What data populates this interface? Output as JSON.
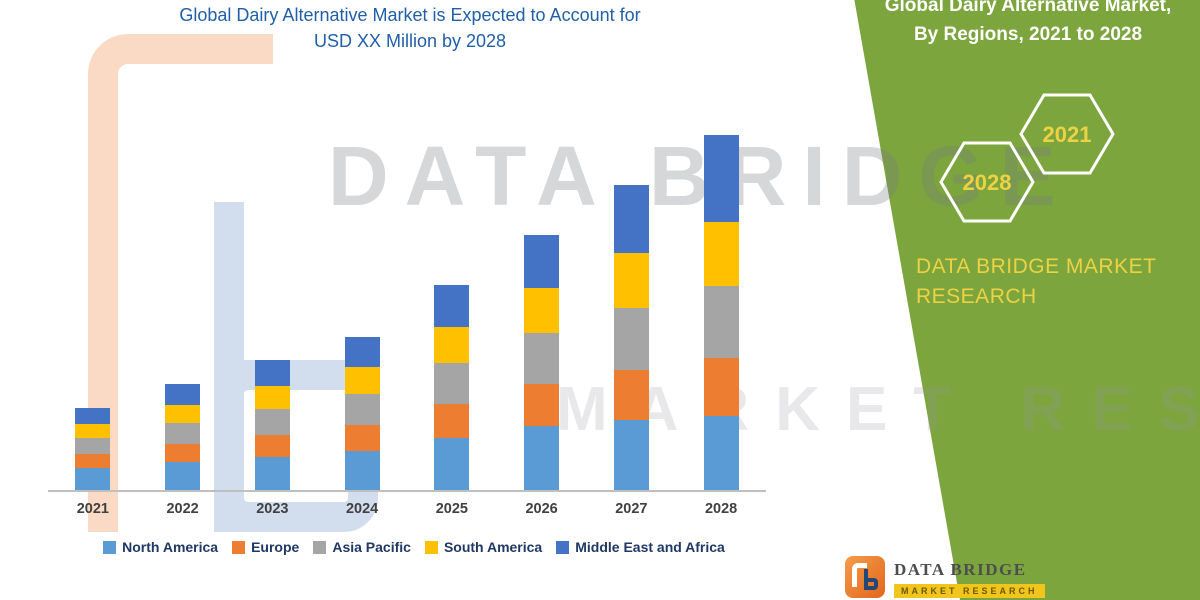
{
  "chart": {
    "title_line1": "Global Dairy Alternative Market is Expected to Account for",
    "title_line2": "USD XX Million by 2028"
  },
  "chart_data": {
    "type": "bar",
    "stacked": true,
    "title": "Global Dairy Alternative Market is Expected to Account for USD XX Million by 2028",
    "categories": [
      "2021",
      "2022",
      "2023",
      "2024",
      "2025",
      "2026",
      "2027",
      "2028"
    ],
    "series": [
      {
        "name": "North America",
        "color": "#5B9BD5",
        "values": [
          22,
          28,
          33,
          39,
          52,
          64,
          70,
          74
        ]
      },
      {
        "name": "Europe",
        "color": "#ED7D31",
        "values": [
          14,
          18,
          22,
          26,
          34,
          42,
          50,
          58
        ]
      },
      {
        "name": "Asia Pacific",
        "color": "#A5A5A5",
        "values": [
          16,
          21,
          26,
          31,
          41,
          51,
          62,
          72
        ]
      },
      {
        "name": "South America",
        "color": "#FFC000",
        "values": [
          14,
          18,
          23,
          27,
          36,
          45,
          55,
          64
        ]
      },
      {
        "name": "Middle East and Africa",
        "color": "#4472C4",
        "values": [
          16,
          21,
          26,
          30,
          42,
          53,
          68,
          87
        ]
      }
    ],
    "value_axis_labeled": false,
    "legend_position": "bottom"
  },
  "watermark": {
    "line1": "DATA BRIDGE",
    "line2": "MARKET RESEARCH"
  },
  "side_panel": {
    "title_line1": "Global Dairy Alternative Market,",
    "title_line2": "By Regions, 2021 to 2028",
    "hexagon_left": "2028",
    "hexagon_right": "2021",
    "brand_line1": "DATA BRIDGE MARKET",
    "brand_line2": "RESEARCH",
    "background_color": "#7CA53E",
    "accent_color": "#EDD243"
  },
  "footer_logo": {
    "name": "DATA BRIDGE",
    "sub": "MARKET RESEARCH"
  }
}
